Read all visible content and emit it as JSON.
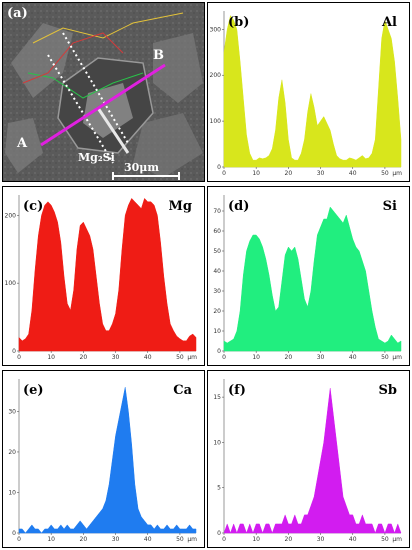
{
  "micrograph": {
    "label": "(a)",
    "point_a": "A",
    "point_b": "B",
    "phase_label": "Mg₂Si",
    "scale_bar": "30μm"
  },
  "chart_data": [
    {
      "type": "area",
      "panel": "(b)",
      "element": "Al",
      "color": "#d8e61c",
      "xlim": [
        0,
        55
      ],
      "ylim": [
        0,
        340
      ],
      "x_ticks": [
        0,
        10,
        20,
        30,
        40,
        50
      ],
      "y_ticks": [
        0,
        100,
        200,
        300
      ],
      "x_unit": "μm",
      "x": [
        0,
        1,
        2,
        3,
        4,
        5,
        6,
        7,
        8,
        9,
        10,
        11,
        12,
        13,
        14,
        15,
        16,
        17,
        18,
        19,
        20,
        21,
        22,
        23,
        24,
        25,
        26,
        27,
        28,
        29,
        30,
        31,
        32,
        33,
        34,
        35,
        36,
        37,
        38,
        39,
        40,
        41,
        42,
        43,
        44,
        45,
        46,
        47,
        48,
        49,
        50,
        51,
        52,
        53,
        54,
        55
      ],
      "values": [
        250,
        300,
        330,
        320,
        300,
        230,
        150,
        70,
        30,
        15,
        15,
        20,
        18,
        20,
        25,
        40,
        80,
        150,
        190,
        140,
        60,
        20,
        15,
        15,
        30,
        60,
        120,
        160,
        130,
        90,
        100,
        110,
        95,
        80,
        50,
        25,
        18,
        15,
        15,
        20,
        18,
        15,
        20,
        25,
        18,
        20,
        30,
        60,
        170,
        280,
        320,
        300,
        280,
        230,
        150,
        60
      ]
    },
    {
      "type": "area",
      "panel": "(c)",
      "element": "Mg",
      "color": "#ef1c15",
      "xlim": [
        0,
        55
      ],
      "ylim": [
        0,
        230
      ],
      "x_ticks": [
        0,
        10,
        20,
        30,
        40,
        50
      ],
      "y_ticks": [
        0,
        100,
        200
      ],
      "x_unit": "μm",
      "x": [
        0,
        1,
        2,
        3,
        4,
        5,
        6,
        7,
        8,
        9,
        10,
        11,
        12,
        13,
        14,
        15,
        16,
        17,
        18,
        19,
        20,
        21,
        22,
        23,
        24,
        25,
        26,
        27,
        28,
        29,
        30,
        31,
        32,
        33,
        34,
        35,
        36,
        37,
        38,
        39,
        40,
        41,
        42,
        43,
        44,
        45,
        46,
        47,
        48,
        49,
        50,
        51,
        52,
        53,
        54,
        55
      ],
      "values": [
        20,
        15,
        18,
        25,
        60,
        120,
        170,
        200,
        215,
        220,
        215,
        205,
        190,
        160,
        110,
        70,
        60,
        90,
        150,
        185,
        190,
        180,
        170,
        150,
        110,
        70,
        40,
        30,
        30,
        40,
        55,
        90,
        150,
        200,
        215,
        225,
        220,
        215,
        210,
        225,
        220,
        220,
        215,
        200,
        160,
        110,
        70,
        40,
        30,
        22,
        18,
        15,
        15,
        22,
        25,
        20
      ]
    },
    {
      "type": "area",
      "panel": "(d)",
      "element": "Si",
      "color": "#21ee7f",
      "xlim": [
        0,
        55
      ],
      "ylim": [
        0,
        78
      ],
      "x_ticks": [
        0,
        10,
        20,
        30,
        40,
        50
      ],
      "y_ticks": [
        0,
        10,
        20,
        30,
        40,
        50,
        60,
        70
      ],
      "x_unit": "μm",
      "x": [
        0,
        1,
        2,
        3,
        4,
        5,
        6,
        7,
        8,
        9,
        10,
        11,
        12,
        13,
        14,
        15,
        16,
        17,
        18,
        19,
        20,
        21,
        22,
        23,
        24,
        25,
        26,
        27,
        28,
        29,
        30,
        31,
        32,
        33,
        34,
        35,
        36,
        37,
        38,
        39,
        40,
        41,
        42,
        43,
        44,
        45,
        46,
        47,
        48,
        49,
        50,
        51,
        52,
        53,
        54,
        55
      ],
      "values": [
        5,
        4,
        5,
        6,
        10,
        20,
        38,
        50,
        55,
        58,
        58,
        56,
        52,
        46,
        38,
        28,
        20,
        22,
        35,
        48,
        52,
        50,
        52,
        46,
        36,
        26,
        22,
        30,
        45,
        58,
        62,
        66,
        66,
        72,
        70,
        68,
        66,
        64,
        68,
        62,
        56,
        52,
        50,
        45,
        40,
        30,
        20,
        12,
        6,
        5,
        4,
        5,
        8,
        6,
        4,
        5
      ]
    },
    {
      "type": "area",
      "panel": "(e)",
      "element": "Ca",
      "color": "#1f7cf0",
      "xlim": [
        0,
        55
      ],
      "ylim": [
        0,
        38
      ],
      "x_ticks": [
        0,
        10,
        20,
        30,
        40,
        50
      ],
      "y_ticks": [
        0,
        10,
        20,
        30
      ],
      "x_unit": "μm",
      "x": [
        0,
        1,
        2,
        3,
        4,
        5,
        6,
        7,
        8,
        9,
        10,
        11,
        12,
        13,
        14,
        15,
        16,
        17,
        18,
        19,
        20,
        21,
        22,
        23,
        24,
        25,
        26,
        27,
        28,
        29,
        30,
        31,
        32,
        33,
        34,
        35,
        36,
        37,
        38,
        39,
        40,
        41,
        42,
        43,
        44,
        45,
        46,
        47,
        48,
        49,
        50,
        51,
        52,
        53,
        54,
        55
      ],
      "values": [
        1,
        1,
        0,
        1,
        2,
        1,
        1,
        0,
        1,
        1,
        2,
        1,
        1,
        2,
        1,
        2,
        1,
        1,
        2,
        3,
        2,
        1,
        2,
        3,
        4,
        5,
        6,
        8,
        12,
        18,
        24,
        28,
        32,
        36,
        30,
        22,
        12,
        6,
        4,
        3,
        2,
        2,
        1,
        2,
        1,
        1,
        2,
        1,
        1,
        2,
        1,
        1,
        1,
        2,
        1,
        1
      ]
    },
    {
      "type": "area",
      "panel": "(f)",
      "element": "Sb",
      "color": "#d21cf0",
      "xlim": [
        0,
        55
      ],
      "ylim": [
        0,
        17
      ],
      "x_ticks": [
        0,
        10,
        20,
        30,
        40,
        50
      ],
      "y_ticks": [
        0,
        5,
        10,
        15
      ],
      "x_unit": "μm",
      "x": [
        0,
        1,
        2,
        3,
        4,
        5,
        6,
        7,
        8,
        9,
        10,
        11,
        12,
        13,
        14,
        15,
        16,
        17,
        18,
        19,
        20,
        21,
        22,
        23,
        24,
        25,
        26,
        27,
        28,
        29,
        30,
        31,
        32,
        33,
        34,
        35,
        36,
        37,
        38,
        39,
        40,
        41,
        42,
        43,
        44,
        45,
        46,
        47,
        48,
        49,
        50,
        51,
        52,
        53,
        54,
        55
      ],
      "values": [
        0,
        1,
        0,
        1,
        0,
        1,
        1,
        0,
        1,
        0,
        1,
        1,
        0,
        1,
        1,
        0,
        1,
        1,
        1,
        2,
        1,
        1,
        2,
        1,
        1,
        2,
        2,
        3,
        4,
        6,
        8,
        10,
        13,
        16,
        13,
        10,
        7,
        4,
        3,
        2,
        2,
        1,
        1,
        2,
        1,
        1,
        1,
        0,
        1,
        1,
        0,
        1,
        1,
        0,
        1,
        0
      ]
    }
  ]
}
